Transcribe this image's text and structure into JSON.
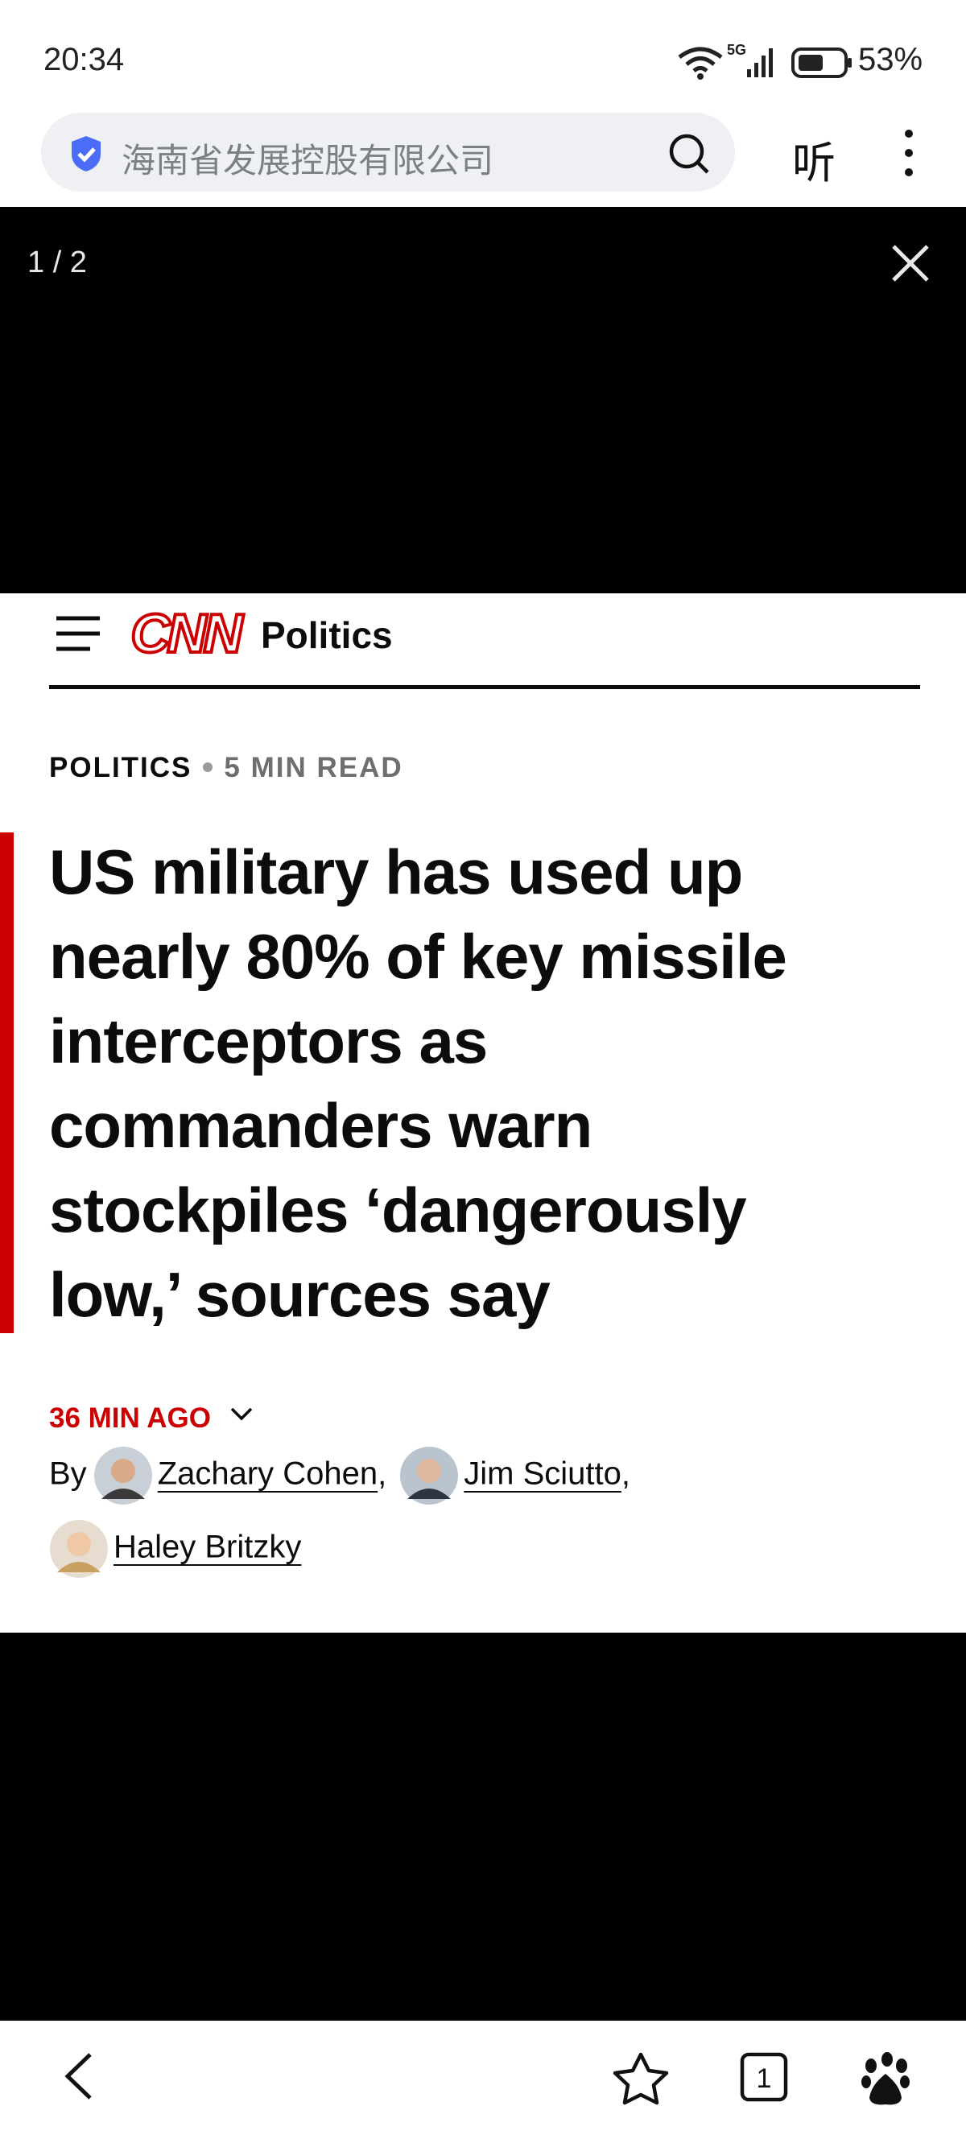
{
  "status": {
    "time": "20:34",
    "network": "5G",
    "battery": "53%"
  },
  "browser": {
    "search_text": "海南省发展控股有限公司",
    "listen": "听",
    "tab_count": "1"
  },
  "viewer": {
    "counter": "1 / 2"
  },
  "article": {
    "logo": "CNN",
    "section_nav": "Politics",
    "kicker": {
      "section": "POLITICS",
      "read_time": "5 MIN READ"
    },
    "headline_lines": [
      "US military has used up",
      "nearly 80% of key missile",
      "interceptors as",
      "commanders warn",
      "stockpiles ‘dangerously",
      "low,’ sources say"
    ],
    "timestamp": "36 MIN AGO",
    "byline": {
      "by": "By",
      "separator": ",",
      "authors": [
        "Zachary Cohen",
        "Jim Sciutto",
        "Haley Britzky"
      ]
    }
  }
}
